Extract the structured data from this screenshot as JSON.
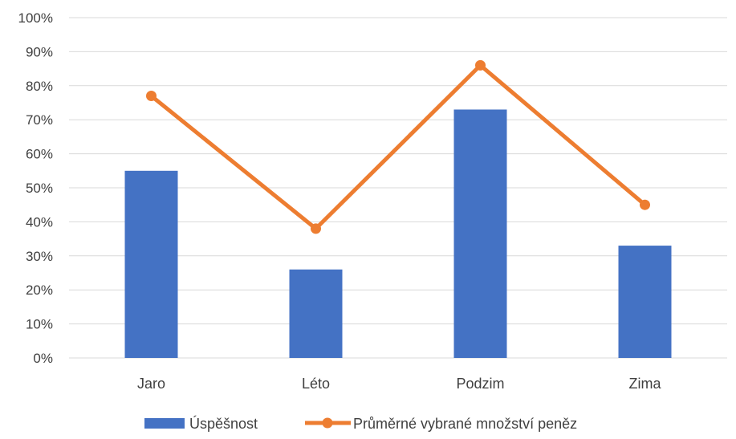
{
  "chart_data": {
    "type": "bar",
    "categories": [
      "Jaro",
      "Léto",
      "Podzim",
      "Zima"
    ],
    "series": [
      {
        "name": "Úspěšnost",
        "type": "bar",
        "values": [
          55,
          26,
          73,
          33
        ],
        "color": "#4472C4"
      },
      {
        "name": "Průměrné vybrané množství peněz",
        "type": "line",
        "values": [
          77,
          38,
          86,
          45
        ],
        "color": "#ED7D31"
      }
    ],
    "y_ticks": [
      "0%",
      "10%",
      "20%",
      "30%",
      "40%",
      "50%",
      "60%",
      "70%",
      "80%",
      "90%",
      "100%"
    ],
    "ylim": [
      0,
      100
    ],
    "grid": true,
    "legend": "bottom-center"
  }
}
